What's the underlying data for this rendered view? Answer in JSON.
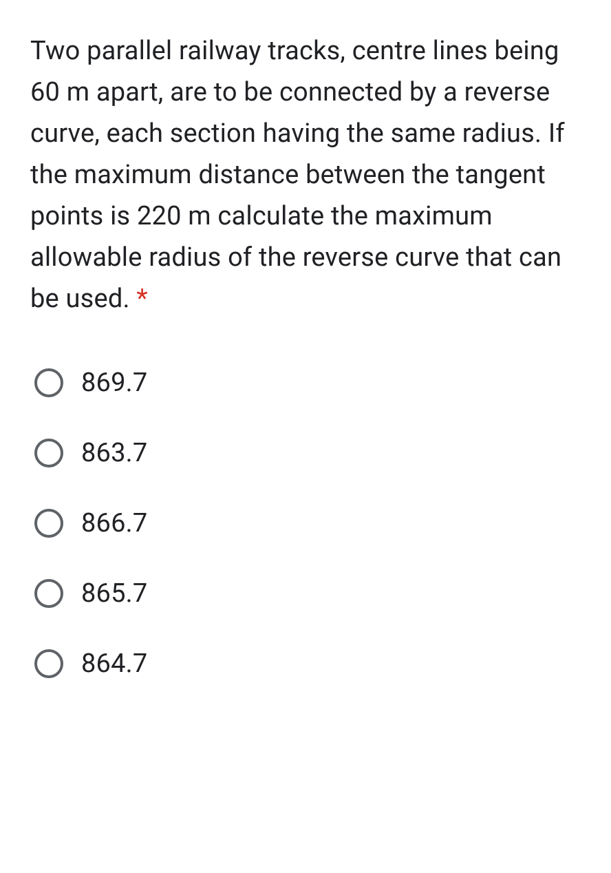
{
  "question": {
    "text": "Two parallel railway tracks, centre lines being 60 m apart, are to be connected by a reverse curve, each section having the same radius. If the maximum distance between the tangent points is 220 m calculate the maximum allowable radius of the reverse curve that can be used. ",
    "required_marker": "*"
  },
  "options": [
    {
      "label": "869.7"
    },
    {
      "label": "863.7"
    },
    {
      "label": "866.7"
    },
    {
      "label": "865.7"
    },
    {
      "label": "864.7"
    }
  ],
  "colors": {
    "text": "#202124",
    "required": "#d93025",
    "radio_border": "#5f6368",
    "background": "#ffffff"
  },
  "typography": {
    "question_fontsize": 38,
    "option_fontsize": 38,
    "line_height": 1.58
  }
}
